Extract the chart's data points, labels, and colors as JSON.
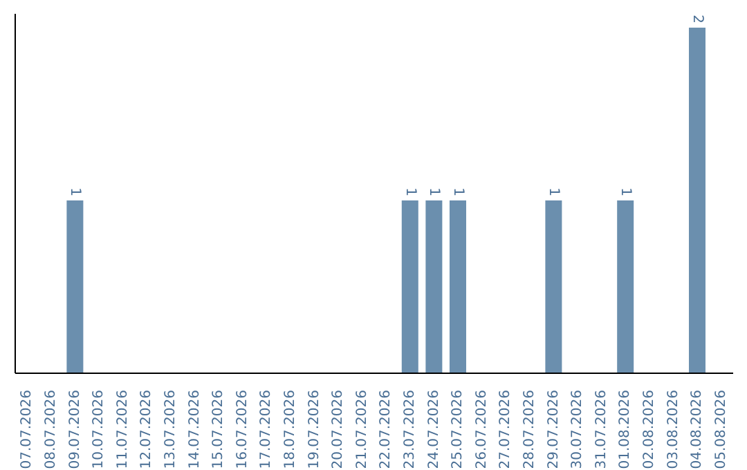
{
  "chart_data": {
    "type": "bar",
    "categories": [
      "07.07.2026",
      "08.07.2026",
      "09.07.2026",
      "10.07.2026",
      "11.07.2026",
      "12.07.2026",
      "13.07.2026",
      "14.07.2026",
      "15.07.2026",
      "16.07.2026",
      "17.07.2026",
      "18.07.2026",
      "19.07.2026",
      "20.07.2026",
      "21.07.2026",
      "22.07.2026",
      "23.07.2026",
      "24.07.2026",
      "25.07.2026",
      "26.07.2026",
      "27.07.2026",
      "28.07.2026",
      "29.07.2026",
      "30.07.2026",
      "31.07.2026",
      "01.08.2026",
      "02.08.2026",
      "03.08.2026",
      "04.08.2026",
      "05.08.2026"
    ],
    "values": [
      0,
      0,
      1,
      0,
      0,
      0,
      0,
      0,
      0,
      0,
      0,
      0,
      0,
      0,
      0,
      0,
      1,
      1,
      1,
      0,
      0,
      0,
      1,
      0,
      0,
      1,
      0,
      0,
      2,
      0
    ],
    "value_labels": [
      null,
      null,
      "1",
      null,
      null,
      null,
      null,
      null,
      null,
      null,
      null,
      null,
      null,
      null,
      null,
      null,
      "1",
      "1",
      "1",
      null,
      null,
      null,
      "1",
      null,
      null,
      "1",
      null,
      null,
      "2",
      null
    ],
    "color": "#6b8fae",
    "ylim": [
      0,
      2.08
    ],
    "tick_labels": "x",
    "grid": false,
    "legend": false
  }
}
